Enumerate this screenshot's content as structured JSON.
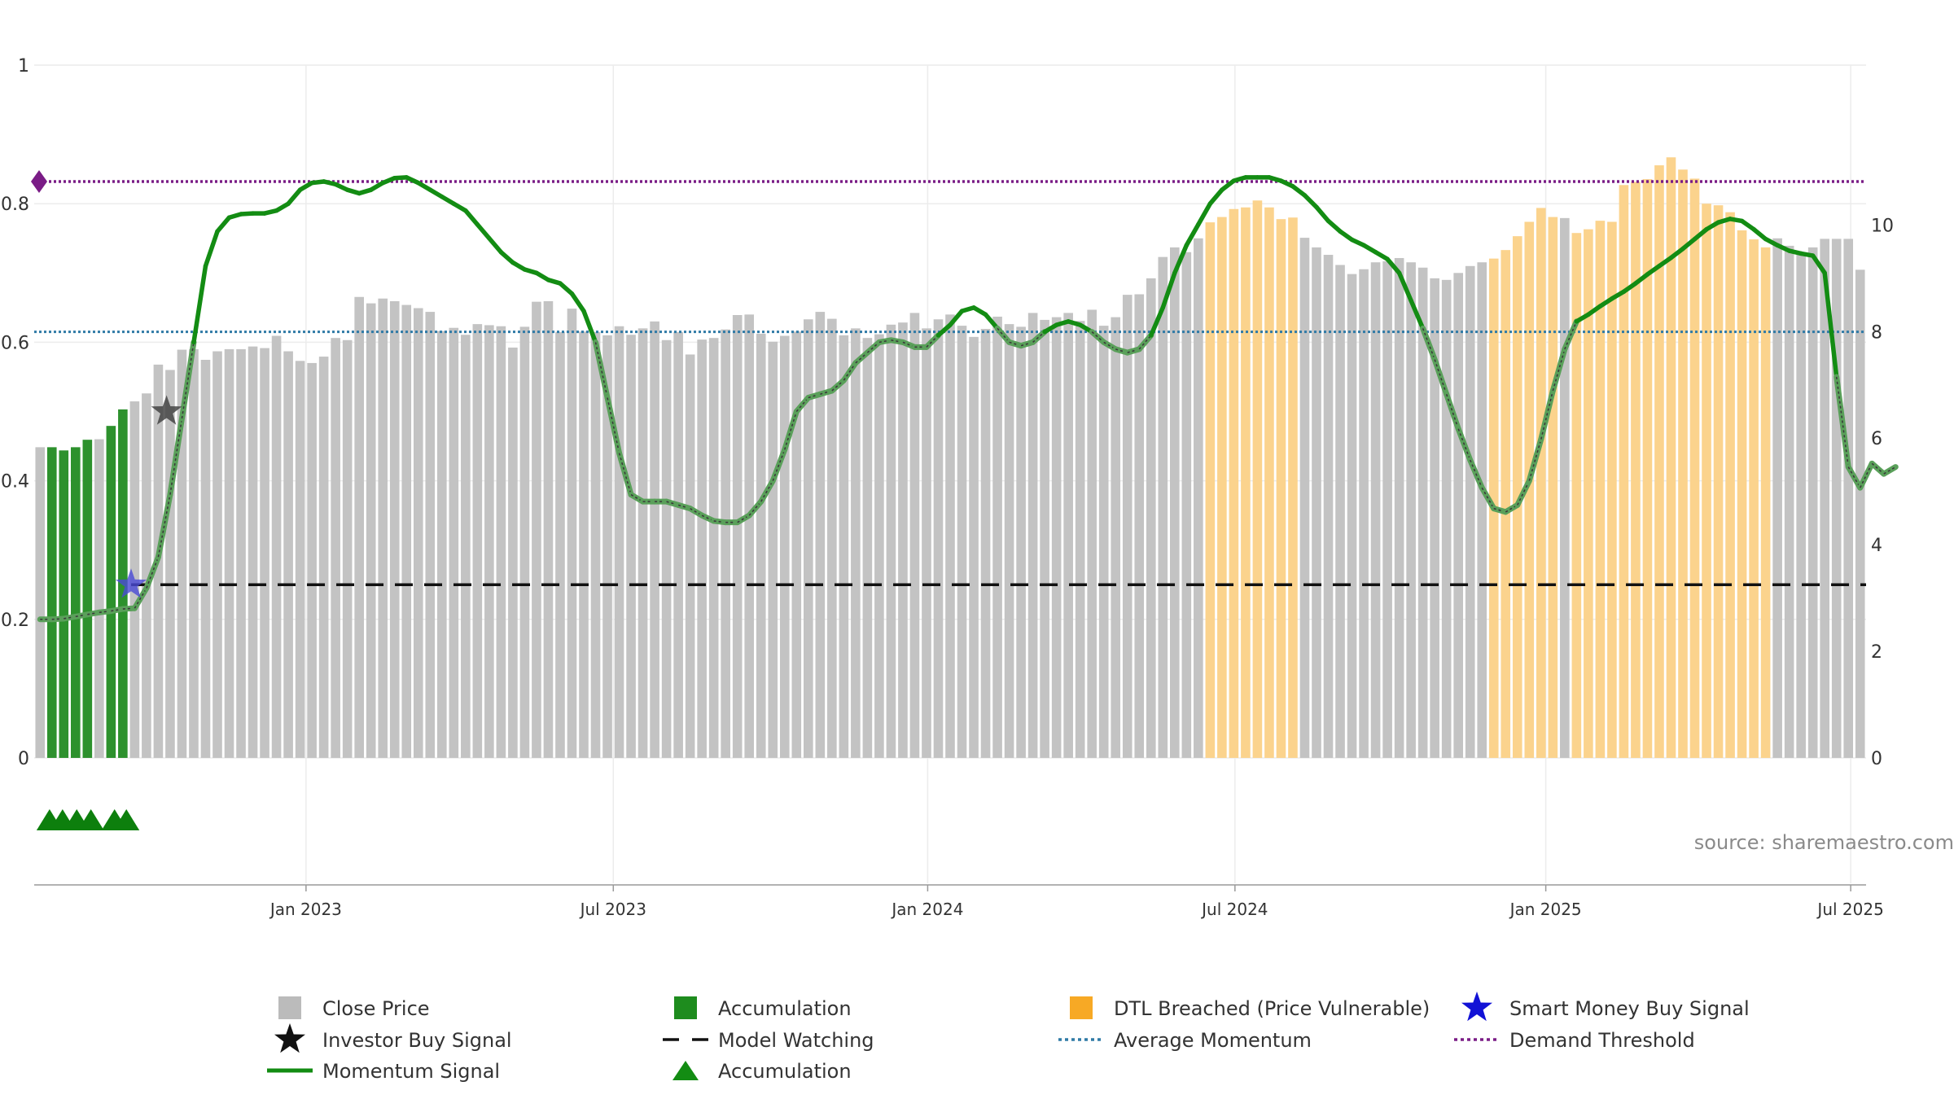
{
  "chart_data": {
    "type": "bar",
    "source": "source: sharemaestro.com",
    "left_axis": {
      "ticks": [
        "0",
        "0.2",
        "0.4",
        "0.6",
        "0.8",
        "1"
      ],
      "ylim": [
        0,
        1
      ]
    },
    "right_axis": {
      "ticks": [
        "0",
        "2",
        "4",
        "6",
        "8",
        "10"
      ],
      "ylim": [
        0,
        13
      ]
    },
    "x_ticks": [
      {
        "label": "Jan 2023",
        "week": 23
      },
      {
        "label": "Jul 2023",
        "week": 49
      },
      {
        "label": "Jan 2024",
        "week": 75.6
      },
      {
        "label": "Jul 2024",
        "week": 101.6
      },
      {
        "label": "Jan 2025",
        "week": 127.9
      },
      {
        "label": "Jul 2025",
        "week": 153.7
      }
    ],
    "close_price": [
      5.83,
      5.83,
      5.77,
      5.83,
      5.97,
      5.98,
      6.23,
      6.54,
      6.69,
      6.84,
      7.38,
      7.28,
      7.66,
      7.67,
      7.47,
      7.63,
      7.67,
      7.67,
      7.72,
      7.69,
      7.92,
      7.63,
      7.45,
      7.41,
      7.53,
      7.88,
      7.84,
      8.65,
      8.53,
      8.62,
      8.57,
      8.5,
      8.44,
      8.37,
      8.01,
      8.07,
      7.94,
      8.14,
      8.12,
      8.1,
      7.7,
      8.09,
      8.56,
      8.57,
      7.99,
      8.43,
      8.0,
      7.99,
      7.93,
      8.1,
      7.94,
      8.06,
      8.19,
      7.84,
      7.99,
      7.57,
      7.85,
      7.88,
      8.04,
      8.31,
      8.32,
      7.96,
      7.81,
      7.92,
      8.0,
      8.23,
      8.37,
      8.24,
      7.93,
      8.06,
      7.88,
      7.95,
      8.13,
      8.17,
      8.35,
      8.06,
      8.23,
      8.32,
      8.11,
      7.9,
      8.05,
      8.28,
      8.14,
      8.09,
      8.35,
      8.22,
      8.27,
      8.35,
      8.2,
      8.41,
      8.11,
      8.27,
      8.69,
      8.7,
      9.0,
      9.4,
      9.58,
      9.49,
      9.75,
      10.05,
      10.15,
      10.3,
      10.33,
      10.46,
      10.33,
      10.11,
      10.14,
      9.76,
      9.58,
      9.44,
      9.25,
      9.08,
      9.17,
      9.3,
      9.32,
      9.38,
      9.3,
      9.2,
      9.0,
      8.97,
      9.1,
      9.23,
      9.3,
      9.37,
      9.53,
      9.79,
      10.06,
      10.32,
      10.15,
      10.13,
      9.85,
      9.92,
      10.08,
      10.06,
      10.75,
      10.81,
      10.86,
      11.12,
      11.27,
      11.04,
      10.87,
      10.4,
      10.37,
      10.24,
      9.9,
      9.73,
      9.58,
      9.75,
      9.61,
      9.49,
      9.58,
      9.74,
      9.74,
      9.74,
      9.16
    ],
    "accumulation_bar_index": [
      1,
      2,
      3,
      4,
      6,
      7
    ],
    "dtl_breached_index": [
      99,
      100,
      101,
      102,
      103,
      104,
      105,
      106,
      123,
      124,
      125,
      126,
      127,
      128,
      130,
      131,
      132,
      133,
      134,
      135,
      136,
      137,
      138,
      139,
      140,
      141,
      142,
      143,
      144,
      145,
      146
    ],
    "momentum": [
      0.2,
      0.2,
      0.201,
      0.204,
      0.207,
      0.21,
      0.212,
      0.215,
      0.216,
      0.245,
      0.29,
      0.38,
      0.49,
      0.6,
      0.71,
      0.76,
      0.78,
      0.785,
      0.786,
      0.786,
      0.79,
      0.8,
      0.82,
      0.83,
      0.832,
      0.828,
      0.82,
      0.815,
      0.82,
      0.83,
      0.837,
      0.838,
      0.83,
      0.82,
      0.81,
      0.8,
      0.79,
      0.77,
      0.75,
      0.73,
      0.715,
      0.705,
      0.7,
      0.69,
      0.685,
      0.67,
      0.645,
      0.6,
      0.52,
      0.44,
      0.38,
      0.37,
      0.37,
      0.37,
      0.365,
      0.36,
      0.35,
      0.342,
      0.34,
      0.34,
      0.35,
      0.37,
      0.4,
      0.445,
      0.5,
      0.52,
      0.525,
      0.53,
      0.545,
      0.57,
      0.585,
      0.6,
      0.603,
      0.6,
      0.593,
      0.593,
      0.61,
      0.625,
      0.645,
      0.65,
      0.64,
      0.62,
      0.6,
      0.595,
      0.6,
      0.615,
      0.625,
      0.63,
      0.625,
      0.615,
      0.6,
      0.59,
      0.585,
      0.59,
      0.61,
      0.65,
      0.7,
      0.74,
      0.77,
      0.8,
      0.82,
      0.833,
      0.838,
      0.838,
      0.838,
      0.833,
      0.825,
      0.812,
      0.795,
      0.775,
      0.76,
      0.748,
      0.74,
      0.73,
      0.72,
      0.7,
      0.66,
      0.62,
      0.575,
      0.525,
      0.475,
      0.43,
      0.39,
      0.36,
      0.355,
      0.365,
      0.4,
      0.46,
      0.53,
      0.59,
      0.63,
      0.64,
      0.652,
      0.663,
      0.673,
      0.685,
      0.698,
      0.71,
      0.722,
      0.735,
      0.749,
      0.763,
      0.773,
      0.778,
      0.775,
      0.763,
      0.749,
      0.74,
      0.732,
      0.728,
      0.725,
      0.7,
      0.55,
      0.42,
      0.39,
      0.425,
      0.41,
      0.42
    ],
    "investor_buy_signal": {
      "week": 11.2,
      "value": 0.5
    },
    "smart_money_buy_signal": {
      "week": 8.2,
      "value": 0.25
    },
    "model_watching": 0.25,
    "average_momentum": 0.615,
    "demand_threshold": 0.832,
    "accumulation_markers_week": [
      1.3,
      2.4,
      3.6,
      4.8,
      6.8,
      7.8
    ],
    "legend": [
      {
        "label": "Close Price",
        "symbol": "square",
        "color": "#bbbbbb"
      },
      {
        "label": "Accumulation",
        "symbol": "square",
        "color": "#1e8c1e"
      },
      {
        "label": "DTL Breached (Price Vulnerable)",
        "symbol": "square",
        "color": "#f7a925"
      },
      {
        "label": "Smart Money Buy Signal",
        "symbol": "star",
        "color": "#1212d6"
      },
      {
        "label": "Investor Buy Signal",
        "symbol": "star",
        "color": "#111111"
      },
      {
        "label": "Model Watching",
        "symbol": "dash",
        "color": "#111111"
      },
      {
        "label": "Average Momentum",
        "symbol": "dot",
        "color": "#2f7aa6"
      },
      {
        "label": "Demand Threshold",
        "symbol": "dot",
        "color": "#7a1c86"
      },
      {
        "label": "Momentum Signal",
        "symbol": "line",
        "color": "#138c13"
      },
      {
        "label": "Accumulation",
        "symbol": "triangle",
        "color": "#138c13"
      }
    ],
    "colors": {
      "close": "#c3c3c3",
      "accumulation": "#2d912d",
      "dtl": "#fbd38d",
      "momentum": "#138c13",
      "momentum_faded": "#5aa05a",
      "average": "#2f7aa6",
      "threshold": "#7a1c86",
      "watching": "#111111",
      "grid": "#ececec"
    }
  }
}
